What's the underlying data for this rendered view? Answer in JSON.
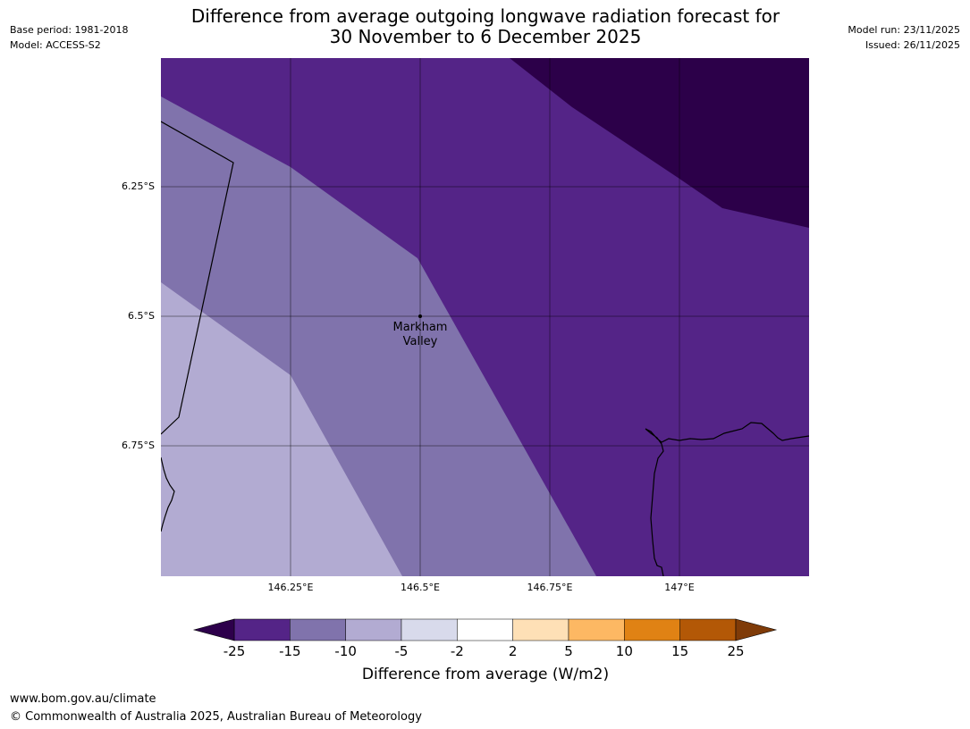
{
  "header": {
    "base_period": "Base period: 1981-2018",
    "model": "Model: ACCESS-S2",
    "model_run": "Model run: 23/11/2025",
    "issued": "Issued: 26/11/2025",
    "title_line1": "Difference from average outgoing longwave radiation forecast for",
    "title_line2": "30 November to 6 December 2025"
  },
  "map": {
    "lat_labels": [
      "6.25°S",
      "6.5°S",
      "6.75°S"
    ],
    "lon_labels": [
      "146.25°E",
      "146.5°E",
      "146.75°E",
      "147°E"
    ],
    "place": {
      "name_line1": "Markham",
      "name_line2": "Valley"
    },
    "region_colors": {
      "darkest": "#2c0049",
      "dark": "#542487",
      "mid": "#8073ac",
      "light": "#b2abd2"
    }
  },
  "legend": {
    "ticks": [
      "-25",
      "-15",
      "-10",
      "-5",
      "-2",
      "2",
      "5",
      "10",
      "15",
      "25"
    ],
    "colors": [
      "#542487",
      "#8073ac",
      "#b2abd2",
      "#d8daeb",
      "#ffffff",
      "#fee0b6",
      "#fdb863",
      "#e08214",
      "#b35806"
    ],
    "under_color": "#2d004b",
    "over_color": "#7f3b08",
    "label": "Difference from average (W/m2)"
  },
  "footer": {
    "url": "www.bom.gov.au/climate",
    "copyright": "© Commonwealth of Australia 2025, Australian Bureau of Meteorology"
  }
}
